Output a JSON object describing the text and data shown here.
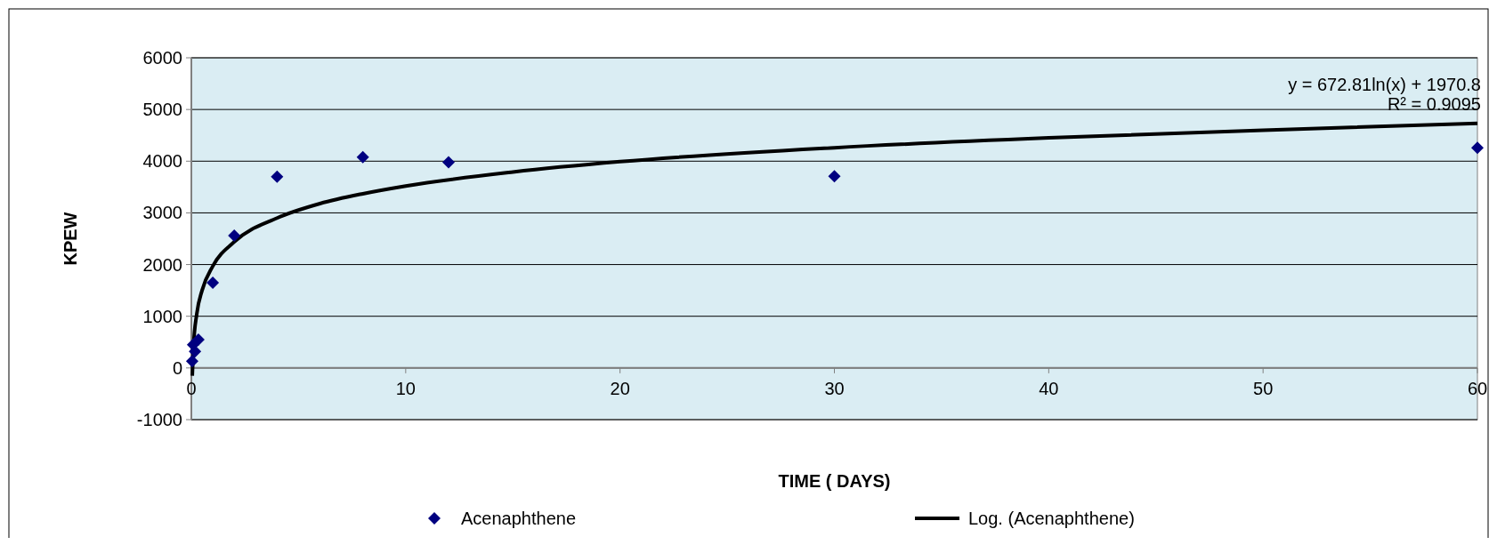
{
  "chart_data": {
    "type": "scatter",
    "xlabel": "TIME ( DAYS)",
    "ylabel": "KPEW",
    "xlim": [
      0,
      60
    ],
    "xticks": [
      0,
      10,
      20,
      30,
      40,
      50,
      60
    ],
    "ylim": [
      -1000,
      6000
    ],
    "yticks": [
      -1000,
      0,
      1000,
      2000,
      3000,
      4000,
      5000,
      6000
    ],
    "grid": "y",
    "legend": "bottom",
    "marker": "diamond",
    "annotations": [
      "y = 672.81ln(x) + 1970.8",
      "R² = 0.9095"
    ],
    "series": [
      {
        "name": "Acenaphthene",
        "color": "#000080",
        "x": [
          0.04,
          0.08,
          0.17,
          0.33,
          1,
          2,
          4,
          8,
          12,
          30,
          60
        ],
        "values": [
          130,
          450,
          320,
          550,
          1650,
          2560,
          3700,
          4080,
          3980,
          3710,
          4260
        ]
      },
      {
        "name": "Log. (Acenaphthene)",
        "color": "#000000",
        "type": "line",
        "line_style": "solid",
        "marker": "none",
        "x": [
          0.043,
          0.1,
          0.25,
          0.5,
          1,
          2,
          4,
          6,
          8,
          10,
          15,
          20,
          30,
          40,
          50,
          60
        ],
        "values": [
          -150,
          420,
          1040,
          1500,
          1970,
          2440,
          2900,
          3180,
          3370,
          3520,
          3790,
          3990,
          4260,
          4450,
          4600,
          4730
        ]
      }
    ]
  }
}
